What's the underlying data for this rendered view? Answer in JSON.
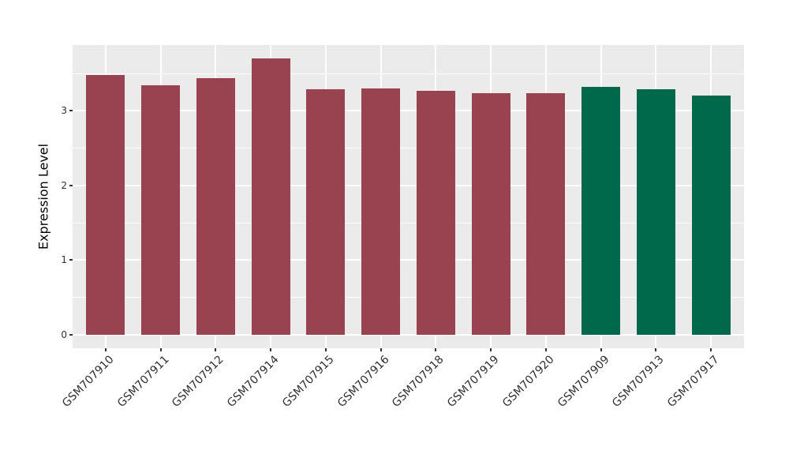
{
  "chart_data": {
    "type": "bar",
    "title": "",
    "xlabel": "",
    "ylabel": "Expression Level",
    "categories": [
      "GSM707910",
      "GSM707911",
      "GSM707912",
      "GSM707914",
      "GSM707915",
      "GSM707916",
      "GSM707918",
      "GSM707919",
      "GSM707920",
      "GSM707909",
      "GSM707913",
      "GSM707917"
    ],
    "values": [
      3.48,
      3.34,
      3.44,
      3.7,
      3.29,
      3.3,
      3.27,
      3.24,
      3.24,
      3.32,
      3.29,
      3.21
    ],
    "bar_colors": [
      "#9A4350",
      "#9A4350",
      "#9A4350",
      "#9A4350",
      "#9A4350",
      "#9A4350",
      "#9A4350",
      "#9A4350",
      "#9A4350",
      "#00694C",
      "#00694C",
      "#00694C"
    ],
    "palette": {
      "maroon": "#9A4350",
      "green": "#00694C",
      "panel_background": "#EBEBEB",
      "grid": "#FFFFFF",
      "tick_text": "#303030"
    },
    "y_ticks": [
      0,
      1,
      2,
      3
    ],
    "y_minor_ticks": [
      0.5,
      1.5,
      2.5,
      3.5
    ],
    "ylim": [
      -0.185,
      3.885
    ],
    "grid": "on",
    "legend": "none",
    "x_label_rotation_deg": 45
  }
}
